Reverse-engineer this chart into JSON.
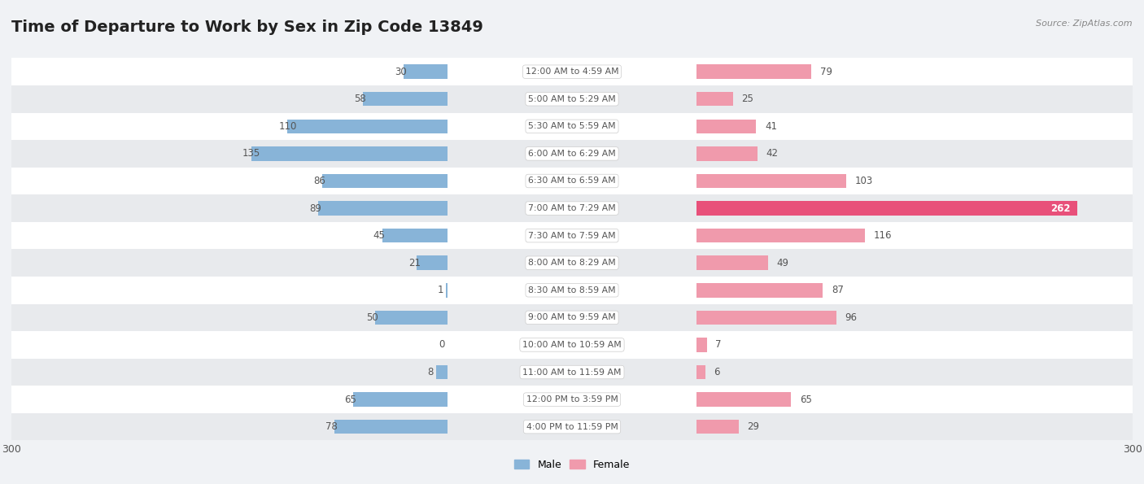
{
  "title": "Time of Departure to Work by Sex in Zip Code 13849",
  "source": "Source: ZipAtlas.com",
  "categories": [
    "12:00 AM to 4:59 AM",
    "5:00 AM to 5:29 AM",
    "5:30 AM to 5:59 AM",
    "6:00 AM to 6:29 AM",
    "6:30 AM to 6:59 AM",
    "7:00 AM to 7:29 AM",
    "7:30 AM to 7:59 AM",
    "8:00 AM to 8:29 AM",
    "8:30 AM to 8:59 AM",
    "9:00 AM to 9:59 AM",
    "10:00 AM to 10:59 AM",
    "11:00 AM to 11:59 AM",
    "12:00 PM to 3:59 PM",
    "4:00 PM to 11:59 PM"
  ],
  "male": [
    30,
    58,
    110,
    135,
    86,
    89,
    45,
    21,
    1,
    50,
    0,
    8,
    65,
    78
  ],
  "female": [
    79,
    25,
    41,
    42,
    103,
    262,
    116,
    49,
    87,
    96,
    7,
    6,
    65,
    29
  ],
  "male_color": "#88b4d8",
  "female_color": "#f09aac",
  "female_color_bright": "#e8507a",
  "axis_max": 300,
  "bg_color": "#f0f2f5",
  "row_color_odd": "#ffffff",
  "row_color_even": "#e8eaed",
  "title_fontsize": 14,
  "bar_height": 0.52,
  "legend_male": "Male",
  "legend_female": "Female",
  "val_color": "#555555",
  "label_color": "#555555"
}
